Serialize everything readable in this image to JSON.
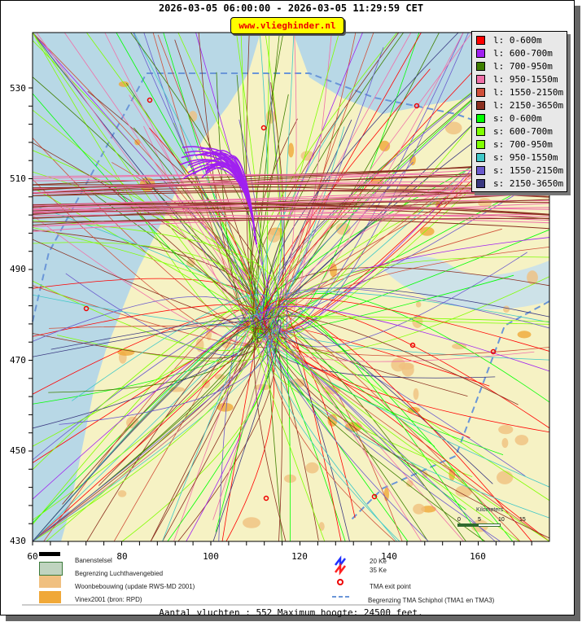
{
  "title": "2026-03-05 06:00:00 - 2026-03-05 11:29:59 CET",
  "website": "www.vlieghinder.nl",
  "axes": {
    "x_ticks": [
      "60",
      "80",
      "100",
      "120",
      "140",
      "160"
    ],
    "y_ticks": [
      "530",
      "510",
      "490",
      "470",
      "450",
      "430"
    ]
  },
  "scale_bar": {
    "label": "Kilometers",
    "ticks": [
      "0",
      "5",
      "10",
      "15"
    ]
  },
  "legend": [
    {
      "label": "l: 0-600m",
      "color": "#ff0000"
    },
    {
      "label": "l: 600-700m",
      "color": "#a020f0"
    },
    {
      "label": "l: 700-950m",
      "color": "#3f7f00"
    },
    {
      "label": "l: 950-1550m",
      "color": "#f070a8"
    },
    {
      "label": "l: 1550-2150m",
      "color": "#d0503a"
    },
    {
      "label": "l: 2150-3650m",
      "color": "#8b3020"
    },
    {
      "label": "s: 0-600m",
      "color": "#00ff00"
    },
    {
      "label": "s: 600-700m",
      "color": "#80ff00"
    },
    {
      "label": "s: 700-950m",
      "color": "#7fff00"
    },
    {
      "label": "s: 950-1550m",
      "color": "#40c8c8"
    },
    {
      "label": "s: 1550-2150m",
      "color": "#6a5acd"
    },
    {
      "label": "s: 2150-3650m",
      "color": "#3a3880"
    }
  ],
  "map_legend": {
    "runways": "Banenstelsel",
    "airport_boundary": "Begrenzing Luchthavengebied",
    "housing": "Woonbebouwing (update RWS-MD 2001)",
    "vinex": "Vinex2001 (bron: RPD)",
    "ke20": "20 Ke",
    "ke35": "35 Ke",
    "tma_exit": "TMA exit point",
    "tma_boundary": "Begrenzing TMA Schiphol  (TMA1 en TMA3)"
  },
  "footer": "Aantal vluchten : 552 Maximum hoogte: 24500 feet."
}
